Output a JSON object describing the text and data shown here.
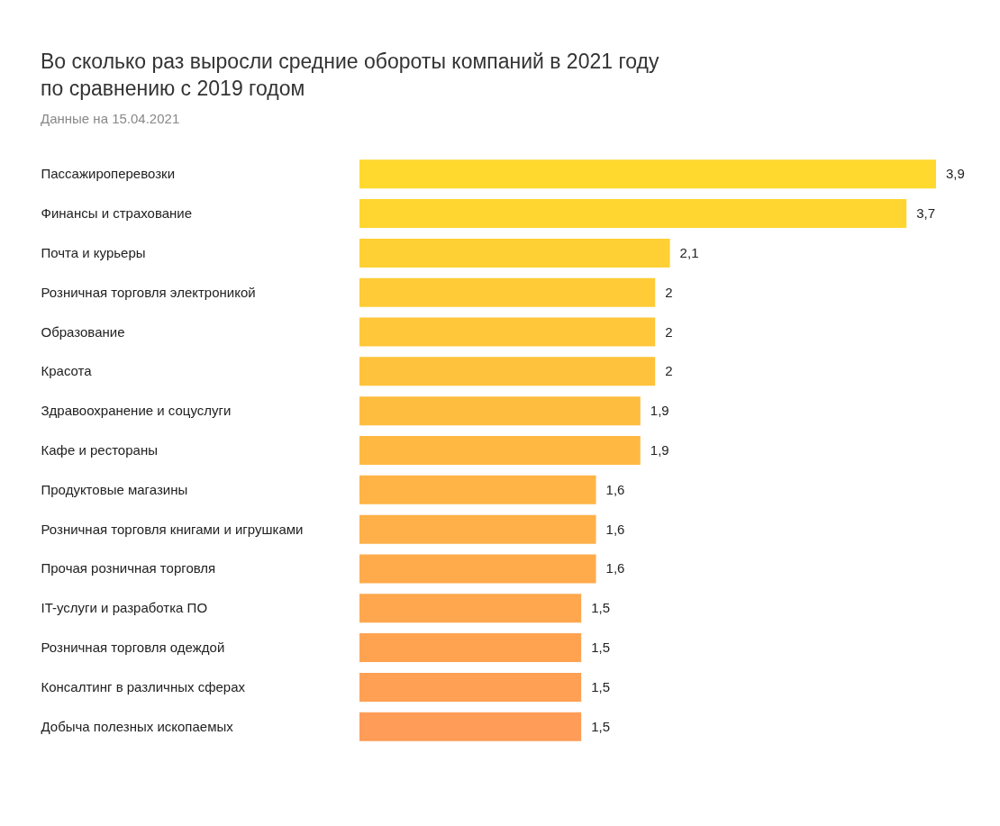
{
  "chart_data": {
    "type": "bar",
    "orientation": "horizontal",
    "title": "Во сколько раз выросли средние обороты компаний в 2021 году по сравнению с 2019 годом",
    "subtitle": "Данные на 15.04.2021",
    "categories": [
      "Пассажироперевозки",
      "Финансы и страхование",
      "Почта и курьеры",
      "Розничная торговля электроникой",
      "Образование",
      "Красота",
      "Здравоохранение и соцуслуги",
      "Кафе и рестораны",
      "Продуктовые магазины",
      "Розничная торговля книгами и игрушками",
      "Прочая розничная торговля",
      "IT-услуги и разработка ПО",
      "Розничная торговля одеждой",
      "Консалтинг в различных сферах",
      "Добыча полезных ископаемых"
    ],
    "values": [
      3.9,
      3.7,
      2.1,
      2,
      2,
      2,
      1.9,
      1.9,
      1.6,
      1.6,
      1.6,
      1.5,
      1.5,
      1.5,
      1.5
    ],
    "colors": [
      "#ffd92e",
      "#ffd530",
      "#ffd033",
      "#ffcb36",
      "#ffc739",
      "#ffc23c",
      "#ffbd3f",
      "#ffb942",
      "#ffb445",
      "#ffb048",
      "#ffab4b",
      "#ffa74e",
      "#ffa351",
      "#ffa054",
      "#ff9c57"
    ],
    "value_labels": [
      "3,9",
      "3,7",
      "2,1",
      "2",
      "2",
      "2",
      "1,9",
      "1,9",
      "1,6",
      "1,6",
      "1,6",
      "1,5",
      "1,5",
      "1,5",
      "1,5"
    ]
  }
}
